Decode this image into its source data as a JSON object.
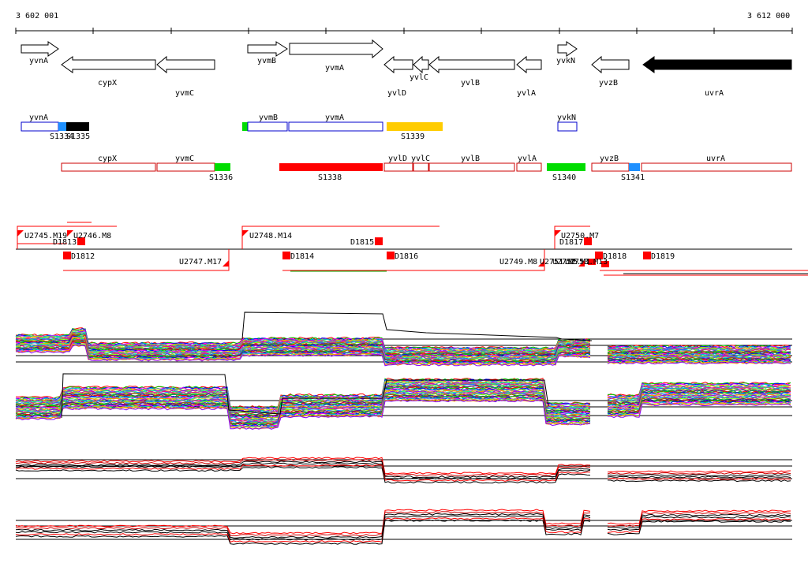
{
  "coords": {
    "start": "3 602 001",
    "end": "3 612 000"
  },
  "genes": [
    {
      "name": "yvnA",
      "label": "yvnA",
      "dir": "right",
      "fill": "#ffffff"
    },
    {
      "name": "cypX",
      "label": "cypX",
      "dir": "left",
      "fill": "#ffffff"
    },
    {
      "name": "yvmC",
      "label": "yvmC",
      "dir": "left",
      "fill": "#ffffff"
    },
    {
      "name": "yvmB",
      "label": "yvmB",
      "dir": "right",
      "fill": "#ffffff"
    },
    {
      "name": "yvmA",
      "label": "yvmA",
      "dir": "right",
      "fill": "#ffffff"
    },
    {
      "name": "yvlD",
      "label": "yvlD",
      "dir": "left",
      "fill": "#ffffff"
    },
    {
      "name": "yvlC",
      "label": "yvlC",
      "dir": "left",
      "fill": "#ffffff"
    },
    {
      "name": "yvlB",
      "label": "yvlB",
      "dir": "left",
      "fill": "#ffffff"
    },
    {
      "name": "yvlA",
      "label": "yvlA",
      "dir": "left",
      "fill": "#ffffff"
    },
    {
      "name": "yvkN",
      "label": "yvkN",
      "dir": "right",
      "fill": "#ffffff"
    },
    {
      "name": "yvzB",
      "label": "yvzB",
      "dir": "left",
      "fill": "#ffffff"
    },
    {
      "name": "uvrA",
      "label": "uvrA",
      "dir": "left",
      "fill": "#000000"
    }
  ],
  "forward_segments": {
    "genes": [
      "yvnA",
      "yvmB",
      "yvmA",
      "yvkN"
    ],
    "segments": [
      "S1334",
      "S1335",
      "S1339"
    ]
  },
  "reverse_segments": {
    "genes": [
      "cypX",
      "yvmC",
      "yvlD",
      "yvlC",
      "yvlB",
      "yvlA",
      "yvzB",
      "uvrA"
    ],
    "segments": [
      "S1336",
      "S1338",
      "S1340",
      "S1341"
    ]
  },
  "upshifts": [
    "U2745.M19",
    "U2746.M8",
    "U2748.M14",
    "U2750.M7",
    "U2747.M17",
    "U2749.M8",
    "U2751.M5",
    "U2752.M1",
    "U2753.M13"
  ],
  "downshifts": [
    "D1813",
    "D1815",
    "D1817",
    "D1812",
    "D1814",
    "D1816",
    "D1818",
    "D1819"
  ],
  "colors": {
    "forward": "#0000cc",
    "reverse": "#cc0000",
    "blue": "#1e90ff",
    "black": "#000000",
    "orange": "#ffcc00",
    "green": "#00dd00",
    "red": "#ff0000"
  }
}
